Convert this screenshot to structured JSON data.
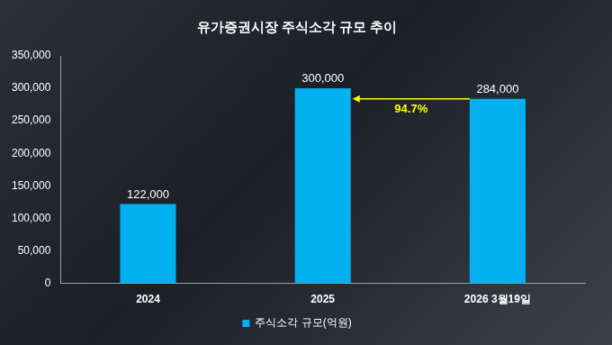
{
  "chart_data": {
    "type": "bar",
    "title": "유가증권시장 주식소각 규모 추이",
    "categories": [
      "2024",
      "2025",
      "2026 3월19일"
    ],
    "series": [
      {
        "name": "주식소각 규모(억원)",
        "color": "#00b0f0",
        "values": [
          122000,
          300000,
          284000
        ],
        "value_labels": [
          "122,000",
          "300,000",
          "284,000"
        ]
      }
    ],
    "ylim": [
      0,
      350000
    ],
    "yticks": [
      0,
      {
        "value": 50000,
        "label": "50,000"
      },
      {
        "value": 100000,
        "label": "100,000"
      },
      {
        "value": 150000,
        "label": "150,000"
      },
      {
        "value": 200000,
        "label": "200,000"
      },
      {
        "value": 250000,
        "label": "250,000"
      },
      {
        "value": 300000,
        "label": "300,000"
      },
      {
        "value": 350000,
        "label": "350,000"
      }
    ],
    "grid": false,
    "legend": "bottom",
    "data_labels": true,
    "annotations": [
      {
        "text": "94.7%",
        "color": "#ffff00"
      }
    ]
  }
}
